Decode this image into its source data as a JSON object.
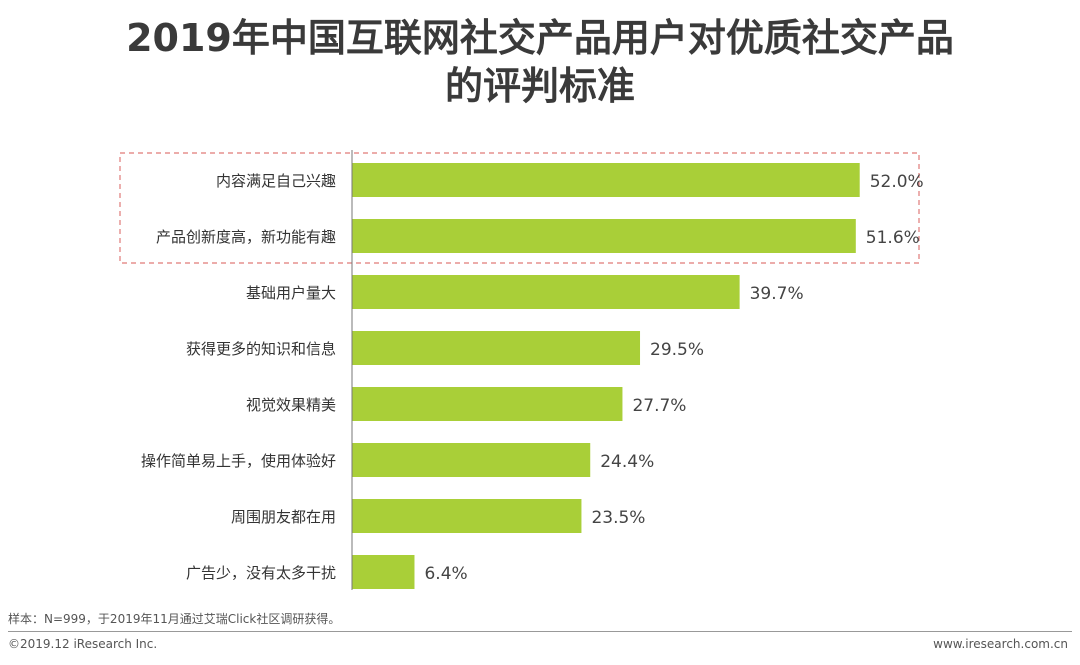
{
  "title": {
    "line1": "2019年中国互联网社交产品用户对优质社交产品",
    "line2": "的评判标准"
  },
  "chart_data": {
    "type": "bar",
    "orientation": "horizontal",
    "categories": [
      "内容满足自己兴趣",
      "产品创新度高，新功能有趣",
      "基础用户量大",
      "获得更多的知识和信息",
      "视觉效果精美",
      "操作简单易上手，使用体验好",
      "周围朋友都在用",
      "广告少，没有太多干扰"
    ],
    "values": [
      52.0,
      51.6,
      39.7,
      29.5,
      27.7,
      24.4,
      23.5,
      6.4
    ],
    "value_labels": [
      "52.0%",
      "51.6%",
      "39.7%",
      "29.5%",
      "27.7%",
      "24.4%",
      "23.5%",
      "6.4%"
    ],
    "xlim": [
      0,
      55
    ],
    "bar_color": "#a9cf38",
    "highlight_color": "#e07a78",
    "highlighted_categories": [
      "内容满足自己兴趣",
      "产品创新度高，新功能有趣"
    ],
    "grid": false
  },
  "footer": {
    "note": "样本：N=999，于2019年11月通过艾瑞Click社区调研获得。",
    "copyright": "©2019.12 iResearch Inc.",
    "website": "www.iresearch.com.cn"
  }
}
